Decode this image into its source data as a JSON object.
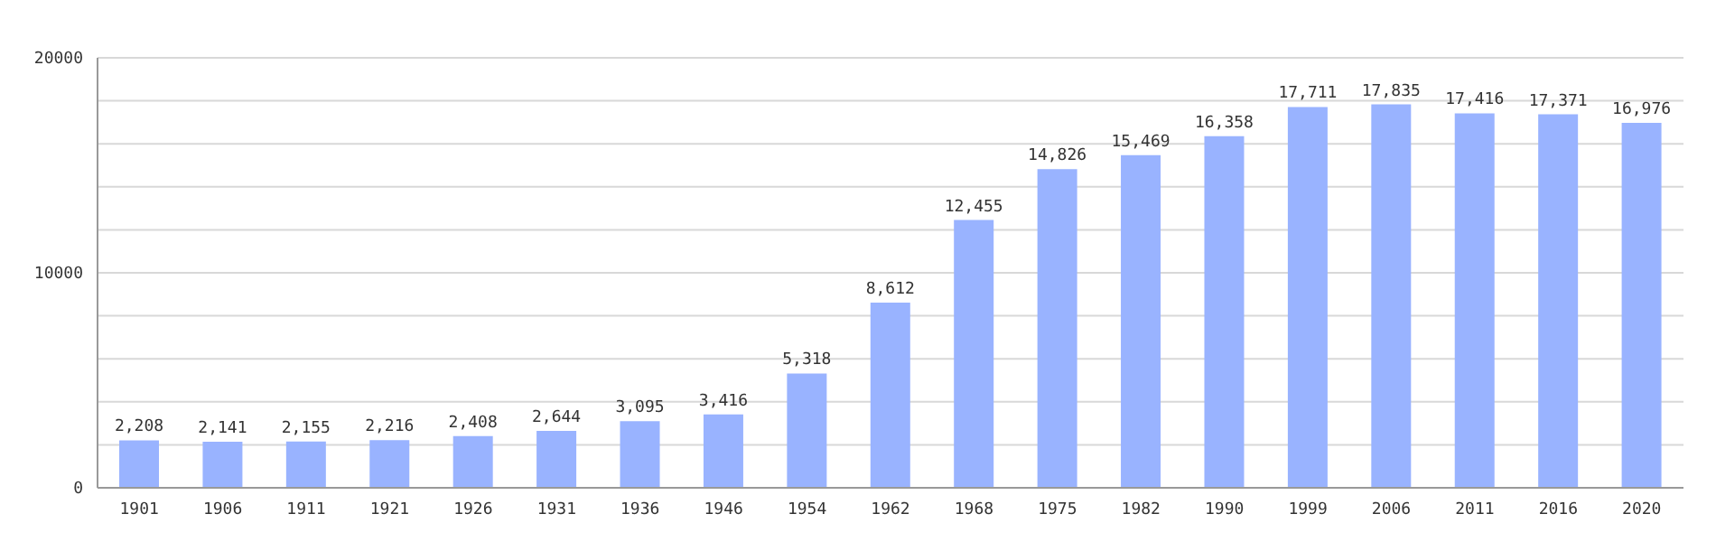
{
  "chart_data": {
    "type": "bar",
    "categories": [
      "1901",
      "1906",
      "1911",
      "1921",
      "1926",
      "1931",
      "1936",
      "1946",
      "1954",
      "1962",
      "1968",
      "1975",
      "1982",
      "1990",
      "1999",
      "2006",
      "2011",
      "2016",
      "2020"
    ],
    "values": [
      2208,
      2141,
      2155,
      2216,
      2408,
      2644,
      3095,
      3416,
      5318,
      8612,
      12455,
      14826,
      15469,
      16358,
      17711,
      17835,
      17416,
      17371,
      16976
    ],
    "value_labels": [
      "2,208",
      "2,141",
      "2,155",
      "2,216",
      "2,408",
      "2,644",
      "3,095",
      "3,416",
      "5,318",
      "8,612",
      "12,455",
      "14,826",
      "15,469",
      "16,358",
      "17,711",
      "17,835",
      "17,416",
      "17,371",
      "16,976"
    ],
    "color": "#99b3ff",
    "ylim": [
      0,
      20000
    ],
    "yticks": [
      0,
      {
        "value": 2000,
        "label": null
      },
      {
        "value": 4000,
        "label": null
      },
      {
        "value": 6000,
        "label": null
      },
      {
        "value": 8000,
        "label": null
      },
      10000,
      {
        "value": 12000,
        "label": null
      },
      {
        "value": 14000,
        "label": null
      },
      {
        "value": 16000,
        "label": null
      },
      {
        "value": 18000,
        "label": null
      },
      20000
    ],
    "grid": "y"
  }
}
